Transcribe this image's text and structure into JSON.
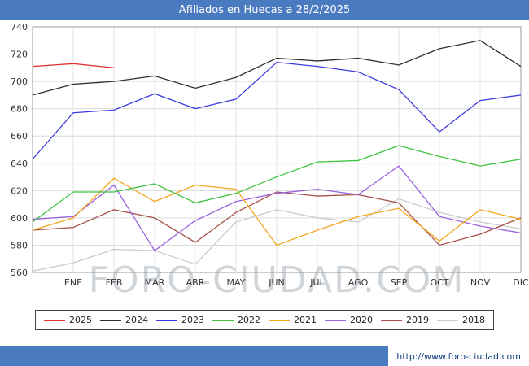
{
  "header": {
    "title": "Afiliados en Huecas a 28/2/2025"
  },
  "watermark": "FORO-CIUDAD.COM",
  "footer": {
    "url": "http://www.foro-ciudad.com"
  },
  "chart_data": {
    "type": "line",
    "title": "Afiliados en Huecas a 28/2/2025",
    "categories": [
      "ENE",
      "FEB",
      "MAR",
      "ABR",
      "MAY",
      "JUN",
      "JUL",
      "AGO",
      "SEP",
      "OCT",
      "NOV",
      "DIC"
    ],
    "ylim": [
      560,
      740
    ],
    "ytick_step": 20,
    "grid": true,
    "legend_position": "bottom",
    "note": "First value of each series is the previous-December carry-over point drawn on the y-axis; following values are ENE..DIC.",
    "series": [
      {
        "name": "2025",
        "color": "#e03131",
        "values": [
          711,
          713,
          710
        ]
      },
      {
        "name": "2024",
        "color": "#2f2f2f",
        "values": [
          690,
          698,
          700,
          704,
          695,
          703,
          717,
          715,
          717,
          712,
          724,
          730,
          711
        ]
      },
      {
        "name": "2023",
        "color": "#3c3ce0",
        "values": [
          643,
          677,
          679,
          691,
          680,
          687,
          714,
          711,
          707,
          694,
          663,
          686,
          690
        ]
      },
      {
        "name": "2022",
        "color": "#3ec43e",
        "values": [
          597,
          619,
          619,
          625,
          611,
          618,
          630,
          641,
          642,
          653,
          645,
          638,
          643
        ]
      },
      {
        "name": "2021",
        "color": "#f2a71f",
        "values": [
          591,
          600,
          629,
          612,
          624,
          621,
          580,
          591,
          601,
          607,
          583,
          606,
          599
        ]
      },
      {
        "name": "2020",
        "color": "#9a64e0",
        "values": [
          599,
          601,
          624,
          576,
          598,
          612,
          618,
          621,
          617,
          638,
          601,
          594,
          589
        ]
      },
      {
        "name": "2019",
        "color": "#a6524a",
        "values": [
          591,
          593,
          606,
          600,
          582,
          604,
          619,
          616,
          617,
          611,
          580,
          588,
          600
        ]
      },
      {
        "name": "2018",
        "color": "#cbcbcb",
        "values": [
          561,
          567,
          577,
          576,
          566,
          597,
          606,
          600,
          597,
          614,
          604,
          597,
          592
        ]
      }
    ]
  }
}
